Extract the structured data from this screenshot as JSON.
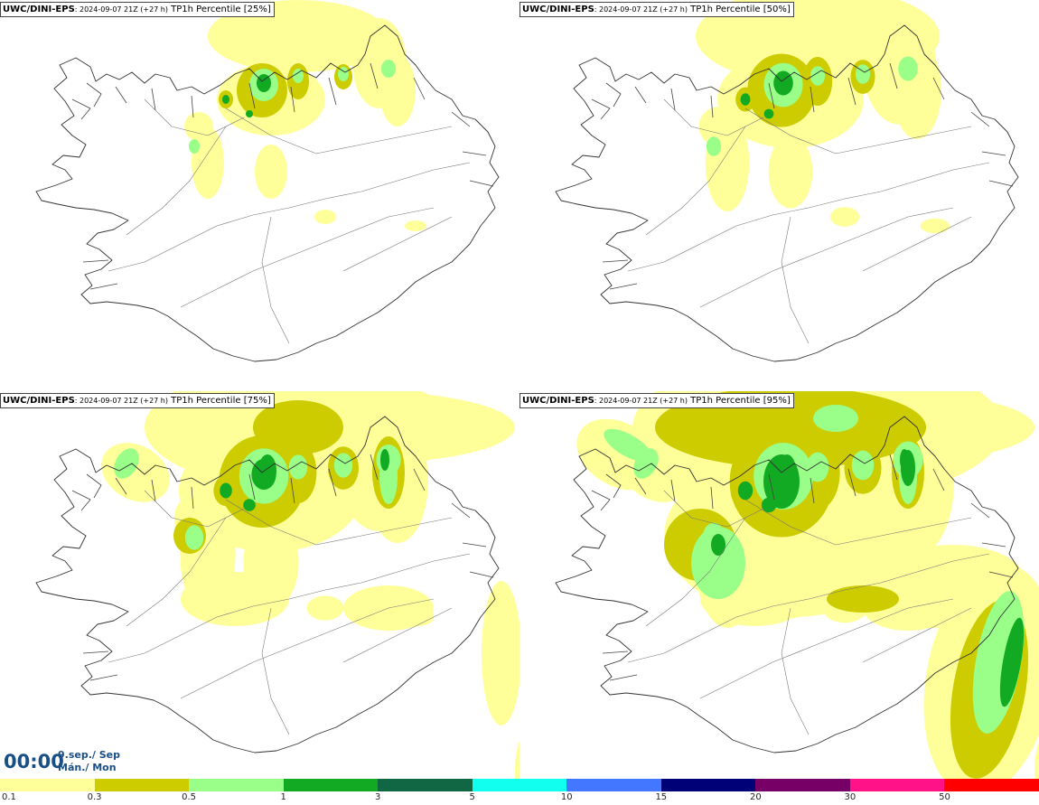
{
  "panels": [
    {
      "source": "UWC/DINI-EPS",
      "run": ": 2024-09-07 21Z (+27 h)",
      "percentile": " TP1h Percentile [25%]",
      "level": 0
    },
    {
      "source": "UWC/DINI-EPS",
      "run": ": 2024-09-07 21Z (+27 h)",
      "percentile": " TP1h Percentile [50%]",
      "level": 1
    },
    {
      "source": "UWC/DINI-EPS",
      "run": ": 2024-09-07 21Z (+27 h)",
      "percentile": " TP1h Percentile [75%]",
      "level": 2
    },
    {
      "source": "UWC/DINI-EPS",
      "run": ": 2024-09-07 21Z (+27 h)",
      "percentile": " TP1h Percentile [95%]",
      "level": 3
    }
  ],
  "time": {
    "clock": "00:00",
    "date_line1": "9.sep./ Sep",
    "date_line2": "Mán./ Mon"
  },
  "legend": {
    "colors": [
      "#ffff99",
      "#cccc00",
      "#99ff88",
      "#11aa22",
      "#116644",
      "#11ffee",
      "#4477ff",
      "#000077",
      "#770066",
      "#ff1188",
      "#ff0000"
    ],
    "labels": [
      "0.1",
      "0.3",
      "0.5",
      "1",
      "3",
      "5",
      "10",
      "15",
      "20",
      "30",
      "50"
    ]
  }
}
